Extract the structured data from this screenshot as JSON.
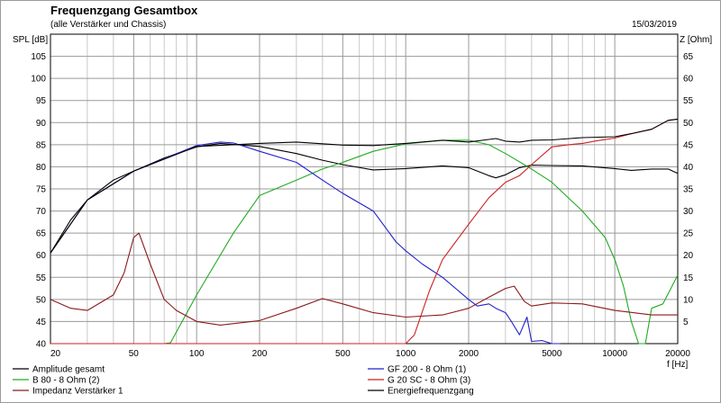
{
  "chart_data": {
    "type": "line",
    "title": "Frequenzgang Gesamtbox",
    "subtitle": "(alle Verstärker und Chassis)",
    "date": "15/03/2019",
    "ylabel": "SPL [dB]",
    "y2label": "Z [Ohm]",
    "xlabel": "f [Hz]",
    "xscale": "log",
    "xlim": [
      20,
      20000
    ],
    "ylim": [
      40,
      110
    ],
    "y2lim": [
      0,
      70
    ],
    "grid": true,
    "x_ticks": [
      20,
      50,
      100,
      200,
      500,
      1000,
      2000,
      5000,
      10000,
      20000
    ],
    "x_tick_labels": [
      "20",
      "50",
      "100",
      "200",
      "500",
      "1000",
      "2000",
      "5000",
      "10000",
      "20000"
    ],
    "y_ticks": [
      40,
      45,
      50,
      55,
      60,
      65,
      70,
      75,
      80,
      85,
      90,
      95,
      100,
      105
    ],
    "y_tick_labels": [
      "40",
      "45",
      "50",
      "55",
      "60",
      "65",
      "70",
      "75",
      "80",
      "85",
      "90",
      "95",
      "100",
      "105"
    ],
    "y2_ticks": [
      5,
      10,
      15,
      20,
      25,
      30,
      35,
      40,
      45,
      50,
      55,
      60,
      65
    ],
    "y2_tick_labels": [
      "5",
      "10",
      "15",
      "20",
      "25",
      "30",
      "35",
      "40",
      "45",
      "50",
      "55",
      "60",
      "65"
    ],
    "legend_position": "bottom",
    "series": [
      {
        "name": "Amplitude gesamt",
        "color": "#000000",
        "axis": "left",
        "x": [
          20,
          25,
          30,
          40,
          50,
          70,
          100,
          130,
          200,
          300,
          400,
          500,
          700,
          1000,
          1500,
          2000,
          2500,
          2700,
          3000,
          3500,
          4000,
          5000,
          7000,
          10000,
          12000,
          15000,
          18000,
          20000
        ],
        "y": [
          60.5,
          68,
          72.5,
          77,
          79,
          82,
          84.5,
          85.3,
          84.6,
          83,
          81.5,
          80.5,
          79.3,
          79.6,
          80.2,
          79.8,
          78,
          77.5,
          78.2,
          79.8,
          80.4,
          80.3,
          80.2,
          79.6,
          79.2,
          79.5,
          79.5,
          78.5
        ]
      },
      {
        "name": "B 80 - 8 Ohm (2)",
        "color": "#22aa22",
        "axis": "left",
        "x": [
          20,
          50,
          70,
          75,
          100,
          150,
          200,
          300,
          400,
          500,
          700,
          1000,
          1500,
          2000,
          2500,
          3000,
          4000,
          5000,
          7000,
          9000,
          10000,
          11000,
          12000,
          13000,
          14000,
          15000,
          17000,
          20000
        ],
        "y": [
          40,
          40,
          40,
          40.2,
          51,
          65,
          73.5,
          77,
          79.5,
          81,
          83.5,
          85.2,
          86,
          86,
          85,
          83,
          79.5,
          76.5,
          70,
          64,
          59,
          53,
          45,
          40,
          40,
          48,
          49,
          55.5
        ]
      },
      {
        "name": "Impedanz Verstärker 1",
        "color": "#8b1a1a",
        "axis": "right",
        "x": [
          20,
          25,
          30,
          40,
          45,
          50,
          53,
          60,
          70,
          80,
          100,
          130,
          200,
          300,
          400,
          500,
          700,
          1000,
          1500,
          2000,
          2500,
          3000,
          3300,
          3700,
          4000,
          5000,
          7000,
          10000,
          15000,
          20000
        ],
        "y": [
          10,
          8,
          7.5,
          11,
          16,
          24,
          25,
          18,
          10,
          7.5,
          5,
          4.2,
          5.2,
          8,
          10.2,
          9,
          7,
          6,
          6.5,
          8,
          10.5,
          12.5,
          13,
          9.5,
          8.5,
          9.2,
          9,
          7.5,
          6.5,
          6.5
        ]
      },
      {
        "name": "GF 200 - 8 Ohm (1)",
        "color": "#2222cc",
        "axis": "left",
        "x": [
          20,
          30,
          50,
          100,
          130,
          150,
          200,
          300,
          400,
          500,
          700,
          900,
          1000,
          1200,
          1500,
          2000,
          2200,
          2500,
          2700,
          3000,
          3200,
          3500,
          3800,
          4000,
          4500,
          5000,
          5500
        ],
        "y": [
          60.5,
          72.5,
          79,
          84.8,
          85.6,
          85.4,
          83.5,
          81,
          77,
          74,
          70,
          63,
          61,
          58,
          55,
          50,
          48.5,
          49,
          48,
          47,
          45,
          42,
          46,
          40.5,
          40.7,
          40,
          40
        ]
      },
      {
        "name": "G 20 SC - 8 Ohm (3)",
        "color": "#cc2222",
        "axis": "left",
        "x": [
          20,
          500,
          1000,
          1100,
          1300,
          1500,
          2000,
          2500,
          3000,
          3500,
          4000,
          5000,
          6000,
          7000,
          8000,
          10000,
          12000,
          15000,
          18000,
          20000
        ],
        "y": [
          40,
          40,
          40,
          42,
          52,
          59,
          67,
          73,
          76.5,
          78,
          80.5,
          84.5,
          85,
          85.3,
          85.8,
          86.5,
          87.5,
          88.5,
          90.5,
          90.8
        ]
      },
      {
        "name": "Energiefrequenzgang",
        "color": "#000000",
        "axis": "left",
        "x": [
          20,
          30,
          50,
          100,
          150,
          200,
          300,
          500,
          700,
          1000,
          1500,
          2000,
          2500,
          2700,
          3000,
          3500,
          4000,
          5000,
          7000,
          10000,
          12000,
          15000,
          18000,
          20000
        ],
        "y": [
          60.5,
          72.5,
          79,
          84.6,
          85,
          85.3,
          85.6,
          84.9,
          84.8,
          85.3,
          86,
          85.6,
          86.2,
          86.4,
          85.8,
          85.6,
          86,
          86.1,
          86.6,
          86.8,
          87.5,
          88.5,
          90.5,
          90.8
        ]
      }
    ]
  }
}
